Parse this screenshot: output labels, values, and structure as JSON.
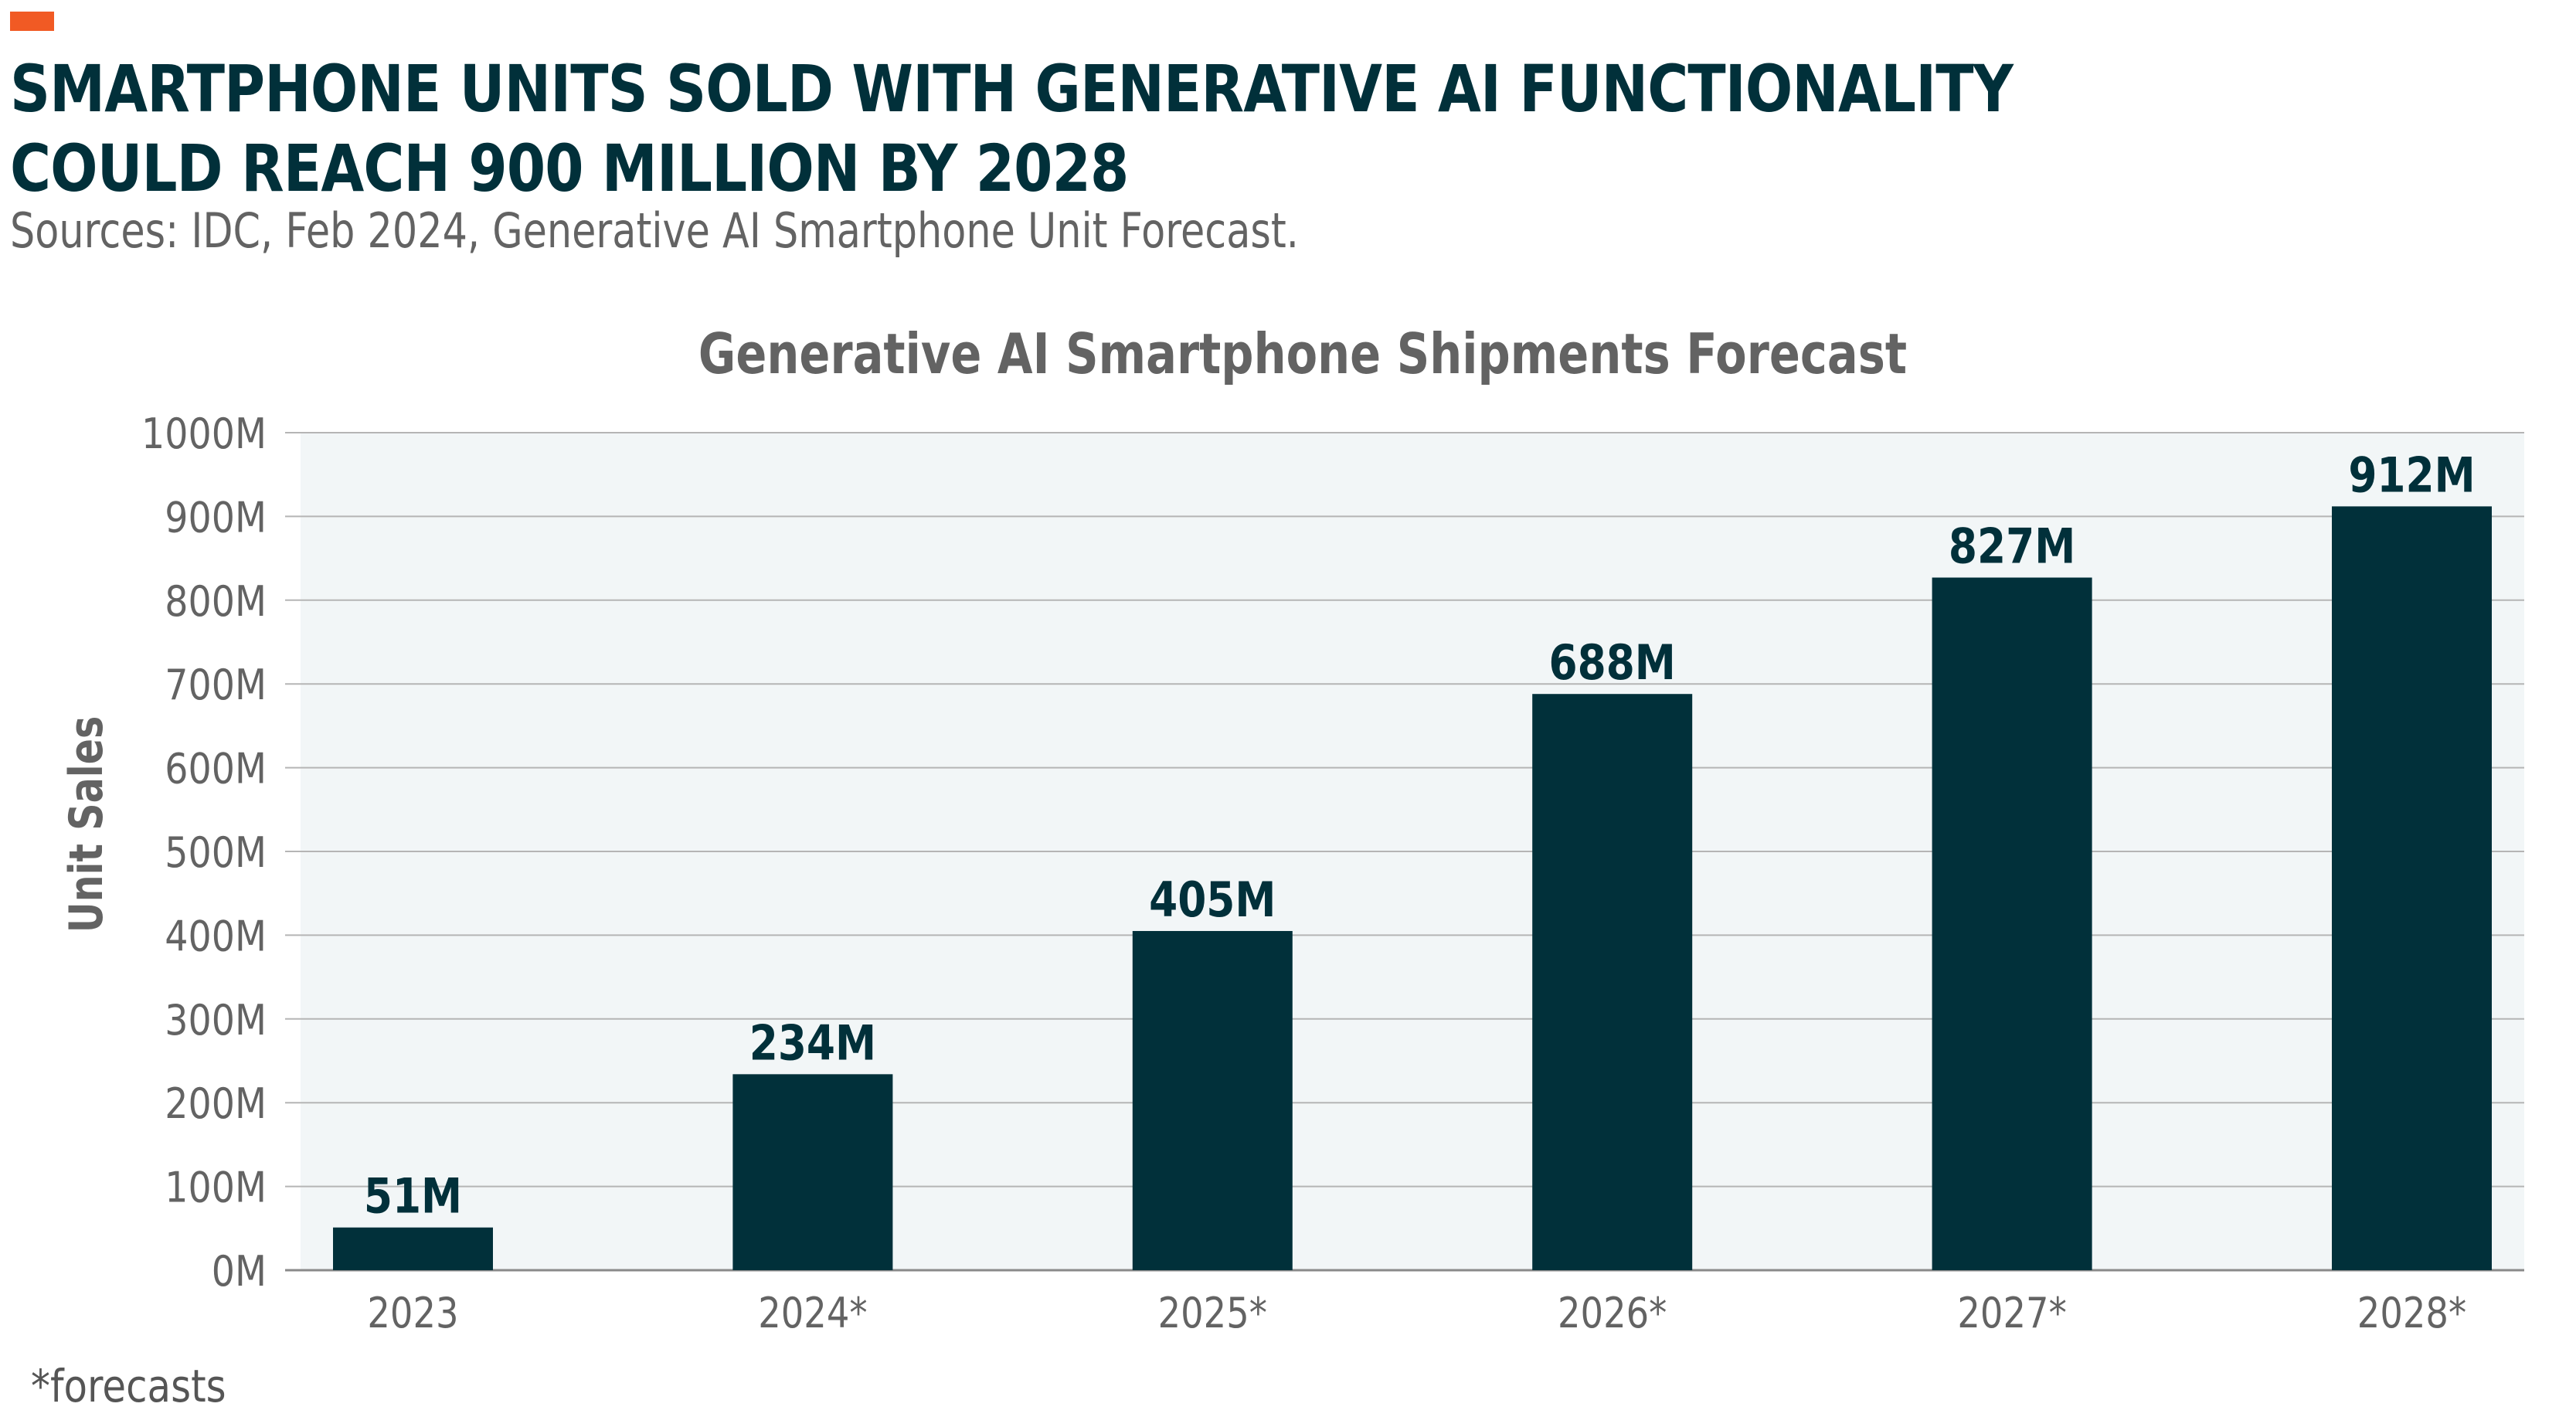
{
  "header": {
    "headline": "SMARTPHONE UNITS SOLD WITH GENERATIVE AI FUNCTIONALITY COULD REACH 900 MILLION BY 2028",
    "source": "Sources: IDC, Feb 2024, Generative AI Smartphone Unit Forecast.",
    "accent_color": "#F15A24"
  },
  "footnote": "*forecasts",
  "colors": {
    "bar": "#01303A",
    "plot_background": "#F2F6F7",
    "gridline": "#B5B5B5",
    "axis_text": "#636363",
    "data_label": "#01303A"
  },
  "chart_data": {
    "type": "bar",
    "title": "Generative AI Smartphone Shipments Forecast",
    "xlabel": "",
    "ylabel": "Unit Sales",
    "categories": [
      "2023",
      "2024*",
      "2025*",
      "2026*",
      "2027*",
      "2028*"
    ],
    "values": [
      51,
      234,
      405,
      688,
      827,
      912
    ],
    "data_labels": [
      "51M",
      "234M",
      "405M",
      "688M",
      "827M",
      "912M"
    ],
    "unit": "M",
    "ylim": [
      0,
      1000
    ],
    "yticks": [
      0,
      100,
      200,
      300,
      400,
      500,
      600,
      700,
      800,
      900,
      1000
    ],
    "ytick_labels": [
      "0M",
      "100M",
      "200M",
      "300M",
      "400M",
      "500M",
      "600M",
      "700M",
      "800M",
      "900M",
      "1000M"
    ],
    "grid": true,
    "legend": "none"
  }
}
